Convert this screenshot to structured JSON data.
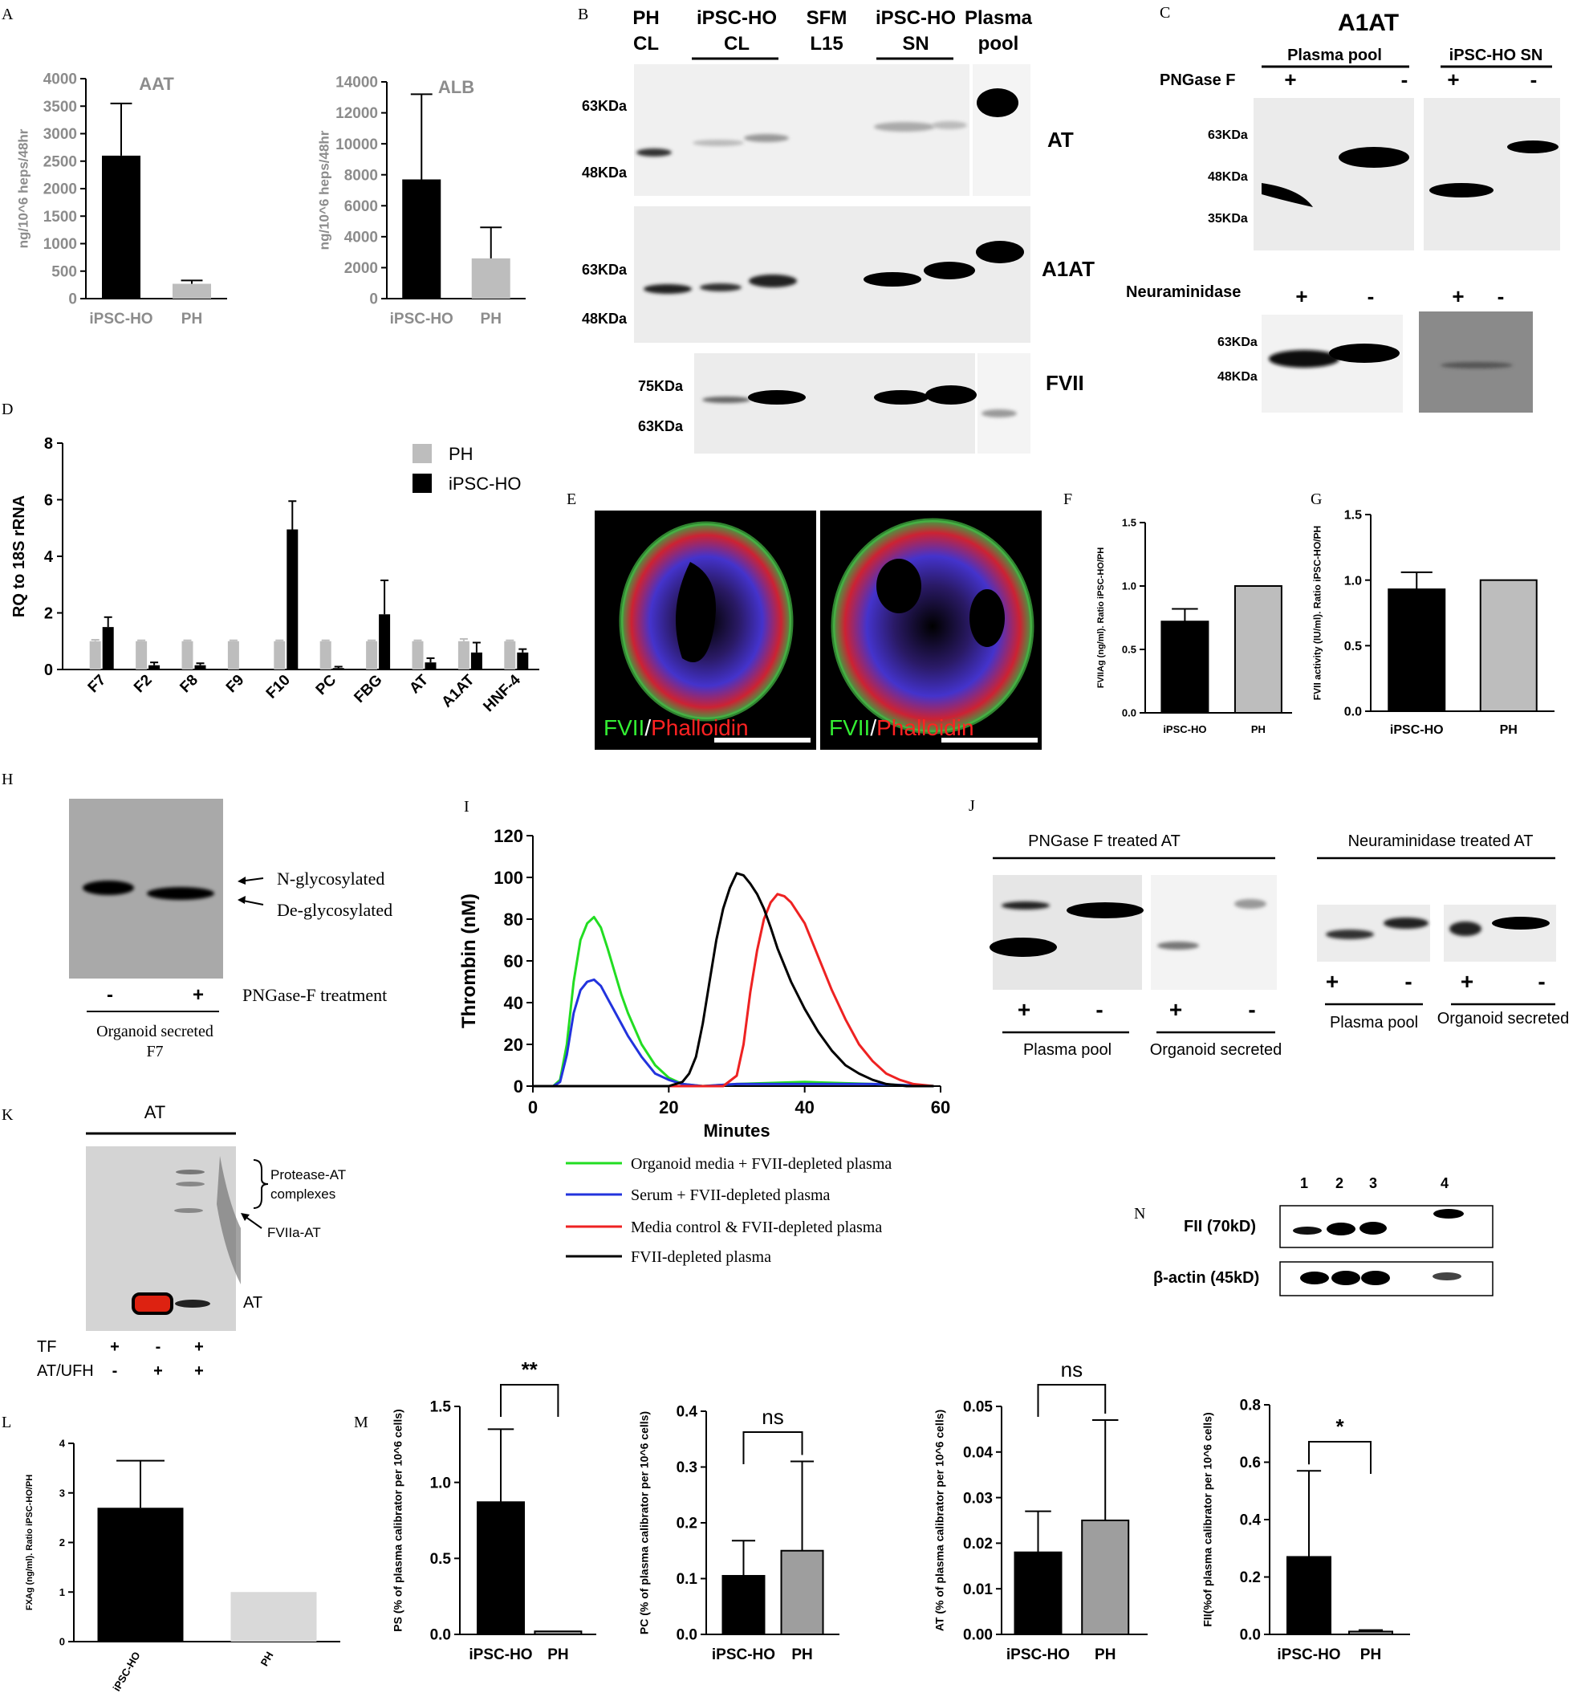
{
  "panels": {
    "A": "A",
    "B": "B",
    "C": "C",
    "D": "D",
    "E": "E",
    "F": "F",
    "G": "G",
    "H": "H",
    "I": "I",
    "J": "J",
    "K": "K",
    "L": "L",
    "M": "M",
    "N": "N"
  },
  "colors": {
    "black_bar": "#000000",
    "gray_bar": "#bdbdbd",
    "gray_bar_m": "#9e9e9e",
    "light_bar_l": "#d9d9d9",
    "line_green": "#22dd22",
    "line_blue": "#2233dd",
    "line_red": "#ee2222",
    "line_black": "#000000",
    "blot_bg": "#e8e8e8",
    "band": "#111111"
  },
  "chart_data": [
    {
      "id": "A_AAT",
      "type": "bar",
      "title": "AAT",
      "ylabel": "ng/10^6 heps/48hr",
      "categories": [
        "iPSC-HO",
        "PH"
      ],
      "values": [
        2600,
        270
      ],
      "errors": [
        950,
        60
      ],
      "ylim": [
        0,
        4000
      ],
      "yticks": [
        "0",
        "500",
        "1000",
        "1500",
        "2000",
        "2500",
        "3000",
        "3500",
        "4000"
      ]
    },
    {
      "id": "A_ALB",
      "type": "bar",
      "title": "ALB",
      "ylabel": "ng/10^6 heps/48hr",
      "categories": [
        "iPSC-HO",
        "PH"
      ],
      "values": [
        7700,
        2600
      ],
      "errors": [
        5500,
        2000
      ],
      "ylim": [
        0,
        14000
      ],
      "yticks": [
        "0",
        "2000",
        "4000",
        "6000",
        "8000",
        "10000",
        "12000",
        "14000"
      ]
    },
    {
      "id": "D",
      "type": "bar",
      "ylabel": "RQ to 18S rRNA",
      "categories": [
        "F7",
        "F2",
        "F8",
        "F9",
        "F10",
        "PC",
        "FBG",
        "AT",
        "A1AT",
        "HNF-4"
      ],
      "series": [
        {
          "name": "PH",
          "values": [
            1.0,
            1.0,
            1.0,
            1.0,
            1.0,
            1.0,
            1.0,
            1.0,
            1.0,
            1.0
          ],
          "errors": [
            0.05,
            0.03,
            0.03,
            0.03,
            0.03,
            0.03,
            0.03,
            0.03,
            0.08,
            0.03
          ]
        },
        {
          "name": "iPSC-HO",
          "values": [
            1.5,
            0.15,
            0.15,
            0.0,
            4.95,
            0.05,
            1.95,
            0.25,
            0.6,
            0.6
          ],
          "errors": [
            0.35,
            0.1,
            0.07,
            0.0,
            1.0,
            0.05,
            1.2,
            0.15,
            0.35,
            0.12
          ]
        }
      ],
      "ylim": [
        0,
        8
      ],
      "yticks": [
        "0",
        "2",
        "4",
        "6",
        "8"
      ]
    },
    {
      "id": "F",
      "type": "bar",
      "ylabel": "FVIIAg (ng/ml). Ratio iPSC-HO/PH",
      "categories": [
        "iPSC-HO",
        "PH"
      ],
      "values": [
        0.72,
        1.0
      ],
      "errors": [
        0.1,
        0.0
      ],
      "ylim": [
        0,
        1.5
      ],
      "yticks": [
        "0.0",
        "0.5",
        "1.0",
        "1.5"
      ]
    },
    {
      "id": "G",
      "type": "bar",
      "ylabel": "FVII activity (IU/ml). Ratio iPSC-HO/PH",
      "categories": [
        "iPSC-HO",
        "PH"
      ],
      "values": [
        0.93,
        1.0
      ],
      "errors": [
        0.13,
        0.0
      ],
      "ylim": [
        0,
        1.5
      ],
      "yticks": [
        "0.0",
        "0.5",
        "1.0",
        "1.5"
      ]
    },
    {
      "id": "I",
      "type": "line",
      "xlabel": "Minutes",
      "ylabel": "Thrombin (nM)",
      "xlim": [
        0,
        60
      ],
      "ylim": [
        0,
        120
      ],
      "xticks": [
        "0",
        "20",
        "40",
        "60"
      ],
      "yticks": [
        "0",
        "20",
        "40",
        "60",
        "80",
        "100",
        "120"
      ],
      "series": [
        {
          "name": "Organoid media + FVII-depleted plasma",
          "x": [
            0,
            3,
            4,
            5,
            6,
            7,
            8,
            9,
            10,
            11,
            12,
            13,
            14,
            16,
            18,
            20,
            22,
            25,
            30,
            40,
            50,
            59
          ],
          "y": [
            0,
            0,
            3,
            20,
            50,
            70,
            78,
            81,
            76,
            66,
            55,
            44,
            35,
            20,
            10,
            4,
            1,
            0,
            1,
            2,
            1,
            0
          ]
        },
        {
          "name": "Serum + FVII-depleted plasma",
          "x": [
            0,
            3,
            4,
            5,
            6,
            7,
            8,
            9,
            10,
            11,
            12,
            13,
            14,
            16,
            18,
            20,
            22,
            25,
            30,
            40,
            50,
            59
          ],
          "y": [
            0,
            0,
            2,
            15,
            35,
            46,
            50,
            51,
            48,
            42,
            36,
            30,
            24,
            14,
            6,
            3,
            1,
            0,
            1,
            1,
            1,
            0
          ]
        },
        {
          "name": "Media control & FVII-depleted plasma",
          "x": [
            0,
            10,
            20,
            28,
            30,
            31,
            32,
            33,
            34,
            35,
            36,
            37,
            38,
            40,
            42,
            44,
            46,
            48,
            50,
            52,
            54,
            56,
            59
          ],
          "y": [
            0,
            0,
            0,
            0,
            5,
            20,
            45,
            65,
            80,
            88,
            92,
            91,
            88,
            78,
            62,
            46,
            32,
            20,
            12,
            6,
            3,
            1,
            0
          ]
        },
        {
          "name": "FVII-depleted plasma",
          "x": [
            0,
            10,
            20,
            22,
            23,
            24,
            25,
            26,
            27,
            28,
            29,
            30,
            31,
            32,
            33,
            34,
            35,
            36,
            38,
            40,
            42,
            44,
            46,
            48,
            50,
            52,
            55,
            59
          ],
          "y": [
            0,
            0,
            0,
            2,
            6,
            14,
            30,
            50,
            70,
            85,
            95,
            102,
            101,
            97,
            92,
            85,
            76,
            66,
            50,
            37,
            26,
            17,
            10,
            6,
            3,
            1,
            0,
            0
          ]
        }
      ]
    },
    {
      "id": "L",
      "type": "bar",
      "ylabel": "FXAg (ng/ml). Ratio iPSC-HO/PH",
      "categories": [
        "iPSC-HO",
        "PH"
      ],
      "values": [
        2.7,
        1.0
      ],
      "errors": [
        0.95,
        0.0
      ],
      "ylim": [
        0,
        4
      ],
      "yticks": [
        "0",
        "1",
        "2",
        "3",
        "4"
      ]
    },
    {
      "id": "M_PS",
      "type": "bar",
      "ylabel": "PS (% of plasma calibrator per 10^6 cells)",
      "categories": [
        "iPSC-HO",
        "PH"
      ],
      "values": [
        0.87,
        0.02
      ],
      "errors": [
        0.48,
        0.0
      ],
      "ylim": [
        0,
        1.5
      ],
      "yticks": [
        "0.0",
        "0.5",
        "1.0",
        "1.5"
      ],
      "significance": "**"
    },
    {
      "id": "M_PC",
      "type": "bar",
      "ylabel": "PC (% of plasma calibrator per 10^6 cells)",
      "categories": [
        "iPSC-HO",
        "PH"
      ],
      "values": [
        0.105,
        0.15
      ],
      "errors": [
        0.063,
        0.16
      ],
      "ylim": [
        0,
        0.4
      ],
      "yticks": [
        "0.0",
        "0.1",
        "0.2",
        "0.3",
        "0.4"
      ],
      "significance": "ns"
    },
    {
      "id": "M_AT",
      "type": "bar",
      "ylabel": "AT (% of plasma calibrator per 10^6 cells)",
      "categories": [
        "iPSC-HO",
        "PH"
      ],
      "values": [
        0.018,
        0.025
      ],
      "errors": [
        0.009,
        0.022
      ],
      "ylim": [
        0,
        0.05
      ],
      "yticks": [
        "0.00",
        "0.01",
        "0.02",
        "0.03",
        "0.04",
        "0.05"
      ],
      "significance": "ns"
    },
    {
      "id": "M_FII",
      "type": "bar",
      "ylabel": "FII(%of plasma calibrator per 10^6 cells)",
      "categories": [
        "iPSC-HO",
        "PH"
      ],
      "values": [
        0.27,
        0.01
      ],
      "errors": [
        0.3,
        0.005
      ],
      "ylim": [
        0,
        0.8
      ],
      "yticks": [
        "0.0",
        "0.2",
        "0.4",
        "0.6",
        "0.8"
      ],
      "significance": "*"
    }
  ],
  "B": {
    "lanes": [
      "PH\nCL",
      "iPSC-HO\nCL",
      "SFM\nL15",
      "iPSC-HO\nSN",
      "Plasma\npool"
    ],
    "lane_top": [
      "PH",
      "iPSC-HO",
      "SFM",
      "iPSC-HO",
      "Plasma"
    ],
    "lane_bot": [
      "CL",
      "CL",
      "L15",
      "SN",
      "pool"
    ],
    "rows": [
      "AT",
      "A1AT",
      "FVII"
    ],
    "markers_at": [
      "63KDa",
      "48KDa"
    ],
    "markers_a1at": [
      "63KDa",
      "48KDa"
    ],
    "markers_fvii": [
      "75KDa",
      "63KDa"
    ]
  },
  "C": {
    "title": "A1AT",
    "group1": "Plasma pool",
    "group2": "iPSC-HO SN",
    "pngase": "PNGase F",
    "neuraminidase": "Neuraminidase",
    "plus": "+",
    "minus": "-",
    "markers_top": [
      "63KDa",
      "48KDa",
      "35KDa"
    ],
    "markers_bottom": [
      "63KDa",
      "48KDa"
    ]
  },
  "E": {
    "fvii": "FVII",
    "slash": "/",
    "phalloidin": "Phalloidin"
  },
  "H": {
    "n_glyco": "N-glycosylated",
    "de_glyco": "De-glycosylated",
    "treatment": "PNGase-F treatment",
    "minus": "-",
    "plus": "+",
    "caption1": "Organoid secreted",
    "caption2": "F7"
  },
  "J": {
    "title1": "PNGase F treated AT",
    "title2": "Neuraminidase treated AT",
    "plasma": "Plasma pool",
    "organoid": "Organoid secreted",
    "plus": "+",
    "minus": "-"
  },
  "K": {
    "title": "AT",
    "complexes1": "Protease-AT",
    "complexes2": "complexes",
    "fviia": "FVIIa-AT",
    "at": "AT",
    "row1": "TF",
    "row2": "AT/UFH",
    "row1_vals": [
      "+",
      "-",
      "+"
    ],
    "row2_vals": [
      "-",
      "+",
      "+"
    ]
  },
  "N": {
    "lanes": [
      "1",
      "2",
      "3",
      "4"
    ],
    "row1": "FII (70kD)",
    "row2": "β-actin (45kD)"
  }
}
